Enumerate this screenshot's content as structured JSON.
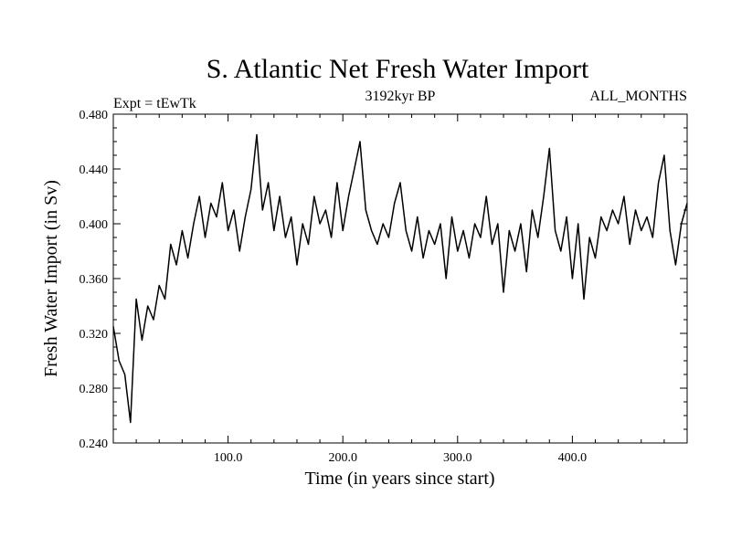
{
  "chart_data": {
    "type": "line",
    "title": "S. Atlantic Net Fresh Water Import",
    "subtitle_left": "Expt = tEwTk",
    "subtitle_center": "3192kyr BP",
    "subtitle_right": "ALL_MONTHS",
    "xlabel": "Time (in years since start)",
    "ylabel": "Fresh Water Import (in Sv)",
    "xlim": [
      0,
      500
    ],
    "ylim": [
      0.24,
      0.48
    ],
    "x_ticks": [
      100,
      200,
      300,
      400
    ],
    "x_tick_labels": [
      "100.0",
      "200.0",
      "300.0",
      "400.0"
    ],
    "y_ticks": [
      0.24,
      0.28,
      0.32,
      0.36,
      0.4,
      0.44,
      0.48
    ],
    "y_tick_labels": [
      "0.240",
      "0.280",
      "0.320",
      "0.360",
      "0.400",
      "0.440",
      "0.480"
    ],
    "series": [
      {
        "name": "Net Fresh Water Import",
        "x": [
          0,
          5,
          10,
          15,
          20,
          25,
          30,
          35,
          40,
          45,
          50,
          55,
          60,
          65,
          70,
          75,
          80,
          85,
          90,
          95,
          100,
          105,
          110,
          115,
          120,
          125,
          130,
          135,
          140,
          145,
          150,
          155,
          160,
          165,
          170,
          175,
          180,
          185,
          190,
          195,
          200,
          205,
          210,
          215,
          220,
          225,
          230,
          235,
          240,
          245,
          250,
          255,
          260,
          265,
          270,
          275,
          280,
          285,
          290,
          295,
          300,
          305,
          310,
          315,
          320,
          325,
          330,
          335,
          340,
          345,
          350,
          355,
          360,
          365,
          370,
          375,
          380,
          385,
          390,
          395,
          400,
          405,
          410,
          415,
          420,
          425,
          430,
          435,
          440,
          445,
          450,
          455,
          460,
          465,
          470,
          475,
          480,
          485,
          490,
          495,
          500
        ],
        "values": [
          0.325,
          0.3,
          0.29,
          0.255,
          0.345,
          0.315,
          0.34,
          0.33,
          0.355,
          0.345,
          0.385,
          0.37,
          0.395,
          0.375,
          0.4,
          0.42,
          0.39,
          0.415,
          0.405,
          0.43,
          0.395,
          0.41,
          0.38,
          0.405,
          0.425,
          0.465,
          0.41,
          0.43,
          0.395,
          0.42,
          0.39,
          0.405,
          0.37,
          0.4,
          0.385,
          0.42,
          0.4,
          0.41,
          0.39,
          0.43,
          0.395,
          0.42,
          0.44,
          0.46,
          0.41,
          0.395,
          0.385,
          0.4,
          0.39,
          0.415,
          0.43,
          0.395,
          0.38,
          0.405,
          0.375,
          0.395,
          0.385,
          0.4,
          0.36,
          0.405,
          0.38,
          0.395,
          0.375,
          0.4,
          0.39,
          0.42,
          0.385,
          0.4,
          0.35,
          0.395,
          0.38,
          0.4,
          0.365,
          0.41,
          0.39,
          0.42,
          0.455,
          0.395,
          0.38,
          0.405,
          0.36,
          0.4,
          0.345,
          0.39,
          0.375,
          0.405,
          0.395,
          0.41,
          0.4,
          0.42,
          0.385,
          0.41,
          0.395,
          0.405,
          0.39,
          0.43,
          0.45,
          0.395,
          0.37,
          0.4,
          0.415
        ]
      }
    ]
  }
}
